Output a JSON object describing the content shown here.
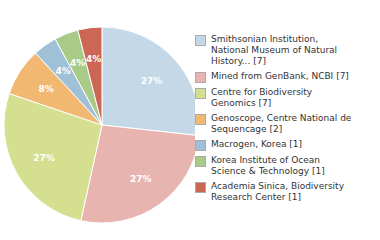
{
  "chart_data": {
    "type": "pie",
    "categories": [
      "Smithsonian Institution,\nNational Museum of Natural\nHistory... [7]",
      "Mined from GenBank, NCBI [7]",
      "Centre for Biodiversity\nGenomics [7]",
      "Genoscope, Centre National de\nSequencage [2]",
      "Macrogen, Korea [1]",
      "Korea Institute of Ocean\nScience & Technology [1]",
      "Academia Sinica, Biodiversity\nResearch Center [1]"
    ],
    "values": [
      27,
      27,
      27,
      8,
      4,
      4,
      4
    ],
    "value_labels": [
      "27%",
      "27%",
      "27%",
      "8%",
      "4%",
      "4%",
      "4%"
    ],
    "colors": [
      "#c5d8e8",
      "#e8b4b0",
      "#d4e090",
      "#f0b870",
      "#a0c0d8",
      "#a8cc88",
      "#cc6655"
    ],
    "data_labels": true,
    "legend": "right"
  }
}
